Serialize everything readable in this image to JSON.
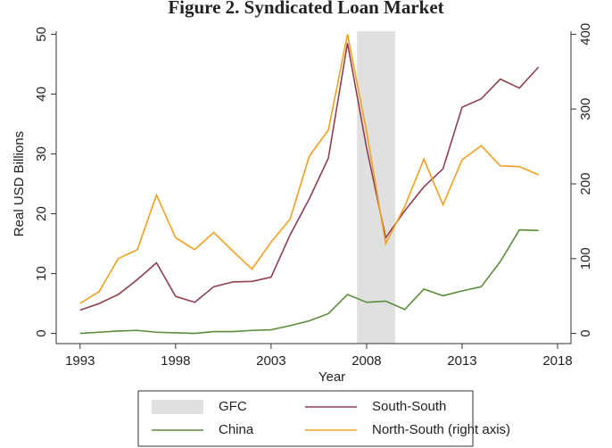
{
  "chart_data": {
    "type": "line",
    "title": "Figure 2. Syndicated Loan Market",
    "x_label": "Year",
    "y_label": "Real USD Billions",
    "x": [
      1993,
      1994,
      1995,
      1996,
      1997,
      1998,
      1999,
      2000,
      2001,
      2002,
      2003,
      2004,
      2005,
      2006,
      2007,
      2008,
      2009,
      2010,
      2011,
      2012,
      2013,
      2014,
      2015,
      2016,
      2017
    ],
    "series": [
      {
        "name": "South-South",
        "color": "#8f3f4e",
        "axis": "y",
        "values": [
          3.9,
          5.0,
          6.5,
          9.0,
          11.8,
          6.2,
          5.2,
          7.8,
          8.6,
          8.7,
          9.4,
          16.5,
          22.5,
          29.3,
          48.5,
          31,
          16,
          20.5,
          24.5,
          27.5,
          37.8,
          39.2,
          42.5,
          41,
          44.5
        ]
      },
      {
        "name": "China",
        "color": "#5b8c3a",
        "axis": "y",
        "values": [
          0.0,
          0.2,
          0.4,
          0.5,
          0.2,
          0.1,
          0.0,
          0.3,
          0.3,
          0.5,
          0.6,
          1.3,
          2.1,
          3.3,
          6.5,
          5.2,
          5.4,
          4.0,
          7.4,
          6.3,
          7.1,
          7.8,
          12,
          17.3,
          17.2
        ]
      },
      {
        "name": "North-South (right axis)",
        "color": "#f0a020",
        "axis": "y2",
        "values": [
          40,
          56,
          100,
          112,
          185,
          128,
          112,
          135,
          110,
          86,
          122,
          153,
          237,
          272,
          400,
          270,
          120,
          170,
          233,
          172,
          232,
          251,
          224,
          223,
          212
        ]
      }
    ],
    "shading": {
      "name": "GFC",
      "x": [
        2007.5,
        2009.5
      ],
      "color": "#e0e0e0"
    },
    "xlim": [
      1991.75,
      2018.7
    ],
    "xticks": [
      1993,
      1998,
      2003,
      2008,
      2013,
      2018
    ],
    "ylim": [
      -1.7,
      50.5
    ],
    "yticks": [
      0,
      10,
      20,
      30,
      40,
      50
    ],
    "y2lim": [
      -13.6,
      404
    ],
    "y2ticks": [
      0,
      100,
      200,
      300,
      400
    ]
  }
}
